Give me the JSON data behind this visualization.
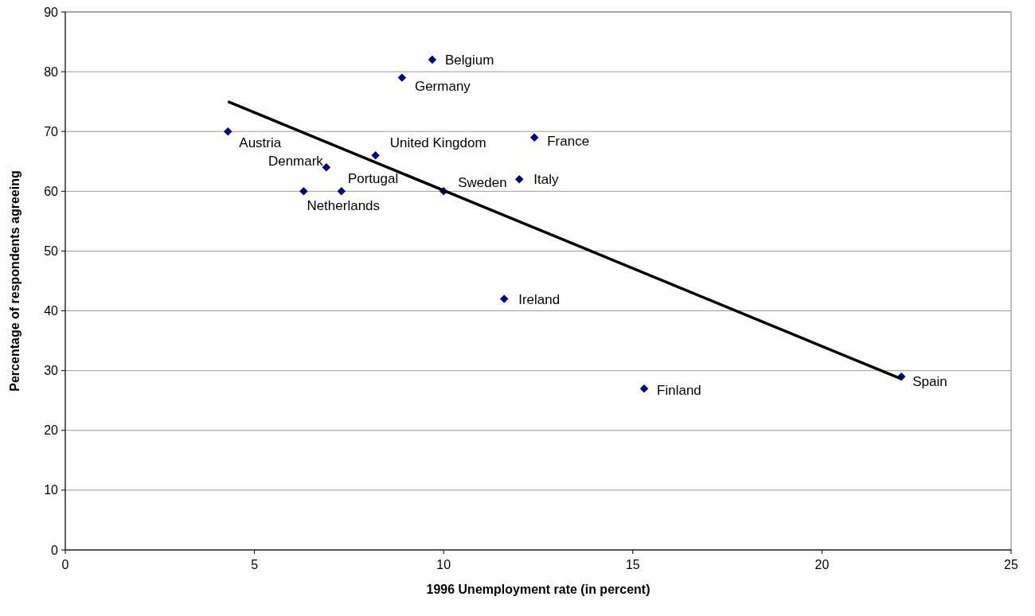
{
  "chart_data": {
    "type": "scatter",
    "xlabel": "1996 Unemployment rate (in percent)",
    "ylabel": "Percentage of respondents agreeing",
    "xlim": [
      0,
      25
    ],
    "xticks": [
      0,
      5,
      10,
      15,
      20,
      25
    ],
    "ylim": [
      0,
      90
    ],
    "yticks": [
      0,
      10,
      20,
      30,
      40,
      50,
      60,
      70,
      80,
      90
    ],
    "grid": "y",
    "series": [
      {
        "marker": "diamond",
        "color": "#000080",
        "x": [
          4.3,
          6.9,
          7.3,
          6.3,
          8.2,
          8.9,
          9.7,
          10.0,
          12.0,
          12.4,
          11.6,
          15.3,
          22.1
        ],
        "values": [
          70,
          64,
          60,
          60,
          66,
          79,
          82,
          60,
          62,
          69,
          42,
          27,
          29
        ]
      },
      {
        "type": "line",
        "marker": "none",
        "color": "#000000",
        "x": [
          4.3,
          22.1
        ],
        "values": [
          75,
          28.6
        ]
      }
    ],
    "annotations": [
      {
        "text": "Austria",
        "x": 4.3,
        "y": 70
      },
      {
        "text": "Denmark",
        "x": 6.9,
        "y": 64
      },
      {
        "text": "Portugal",
        "x": 7.3,
        "y": 60
      },
      {
        "text": "Netherlands",
        "x": 6.3,
        "y": 60
      },
      {
        "text": "United Kingdom",
        "x": 8.2,
        "y": 66
      },
      {
        "text": "Germany",
        "x": 8.9,
        "y": 79
      },
      {
        "text": "Belgium",
        "x": 9.7,
        "y": 82
      },
      {
        "text": "Sweden",
        "x": 10.0,
        "y": 60
      },
      {
        "text": "Italy",
        "x": 12.0,
        "y": 62
      },
      {
        "text": "France",
        "x": 12.4,
        "y": 69
      },
      {
        "text": "Ireland",
        "x": 11.6,
        "y": 42
      },
      {
        "text": "Finland",
        "x": 15.3,
        "y": 27
      },
      {
        "text": "Spain",
        "x": 22.1,
        "y": 29
      }
    ]
  }
}
